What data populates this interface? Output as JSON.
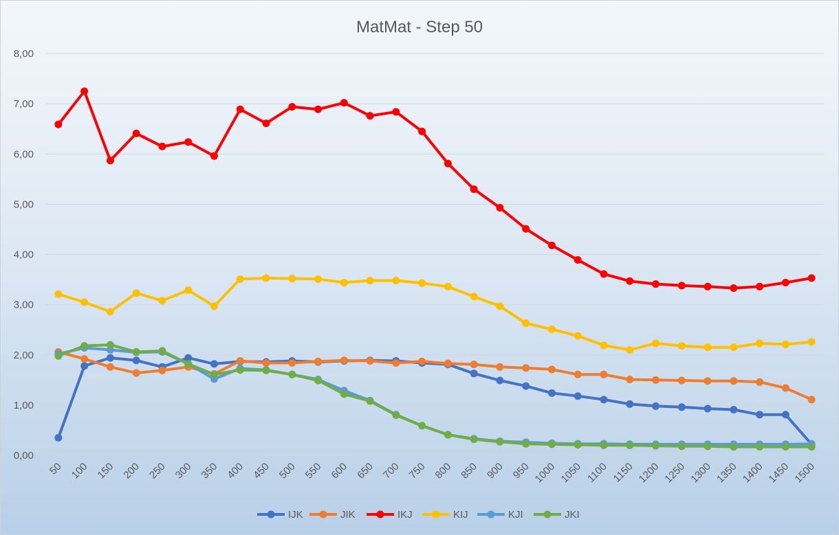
{
  "chart_data": {
    "type": "line",
    "title": "MatMat - Step 50",
    "xlabel": "",
    "ylabel": "",
    "ylim": [
      0,
      8
    ],
    "y_ticks": [
      "0,00",
      "1,00",
      "2,00",
      "3,00",
      "4,00",
      "5,00",
      "6,00",
      "7,00",
      "8,00"
    ],
    "y_tick_values": [
      0,
      1,
      2,
      3,
      4,
      5,
      6,
      7,
      8
    ],
    "grid": true,
    "legend_position": "bottom",
    "categories": [
      "50",
      "100",
      "150",
      "200",
      "250",
      "300",
      "350",
      "400",
      "450",
      "500",
      "550",
      "600",
      "650",
      "700",
      "750",
      "800",
      "850",
      "900",
      "950",
      "1000",
      "1050",
      "1100",
      "1150",
      "1200",
      "1250",
      "1300",
      "1350",
      "1400",
      "1450",
      "1500"
    ],
    "series": [
      {
        "name": "IJK",
        "color": "#4472c4",
        "values": [
          0.35,
          1.78,
          1.94,
          1.89,
          1.76,
          1.94,
          1.82,
          1.87,
          1.86,
          1.88,
          1.86,
          1.88,
          1.89,
          1.88,
          1.84,
          1.81,
          1.63,
          1.49,
          1.38,
          1.24,
          1.18,
          1.11,
          1.02,
          0.98,
          0.96,
          0.93,
          0.91,
          0.81,
          0.81,
          0.22
        ]
      },
      {
        "name": "JIK",
        "color": "#ed7d31",
        "values": [
          2.06,
          1.92,
          1.76,
          1.64,
          1.69,
          1.76,
          1.62,
          1.88,
          1.84,
          1.84,
          1.87,
          1.89,
          1.88,
          1.84,
          1.87,
          1.83,
          1.81,
          1.76,
          1.74,
          1.71,
          1.61,
          1.61,
          1.51,
          1.5,
          1.49,
          1.48,
          1.48,
          1.46,
          1.34,
          1.11
        ]
      },
      {
        "name": "IKJ",
        "color": "#ff0000",
        "values": [
          6.59,
          7.25,
          5.87,
          6.41,
          6.15,
          6.24,
          5.96,
          6.89,
          6.61,
          6.94,
          6.89,
          7.02,
          6.76,
          6.84,
          6.45,
          5.81,
          5.3,
          4.93,
          4.51,
          4.18,
          3.89,
          3.61,
          3.47,
          3.41,
          3.38,
          3.36,
          3.33,
          3.36,
          3.44,
          3.53
        ]
      },
      {
        "name": "KIJ",
        "color": "#ffc000",
        "values": [
          3.21,
          3.05,
          2.86,
          3.23,
          3.08,
          3.29,
          2.97,
          3.51,
          3.53,
          3.52,
          3.51,
          3.44,
          3.48,
          3.48,
          3.43,
          3.36,
          3.16,
          2.97,
          2.63,
          2.51,
          2.38,
          2.19,
          2.1,
          2.23,
          2.18,
          2.15,
          2.15,
          2.23,
          2.21,
          2.26
        ]
      },
      {
        "name": "KJI",
        "color": "#5b9bd5",
        "values": [
          2.02,
          2.14,
          2.1,
          2.05,
          2.06,
          1.82,
          1.52,
          1.73,
          1.7,
          1.61,
          1.51,
          1.29,
          1.09,
          0.81,
          0.59,
          0.41,
          0.33,
          0.28,
          0.26,
          0.24,
          0.23,
          0.23,
          0.22,
          0.22,
          0.22,
          0.22,
          0.22,
          0.22,
          0.22,
          0.23
        ]
      },
      {
        "name": "JKI",
        "color": "#70ad47",
        "values": [
          1.98,
          2.18,
          2.2,
          2.06,
          2.08,
          1.82,
          1.61,
          1.7,
          1.69,
          1.61,
          1.49,
          1.22,
          1.08,
          0.8,
          0.59,
          0.41,
          0.32,
          0.27,
          0.23,
          0.22,
          0.21,
          0.2,
          0.2,
          0.19,
          0.18,
          0.18,
          0.17,
          0.17,
          0.17,
          0.17
        ]
      }
    ]
  }
}
